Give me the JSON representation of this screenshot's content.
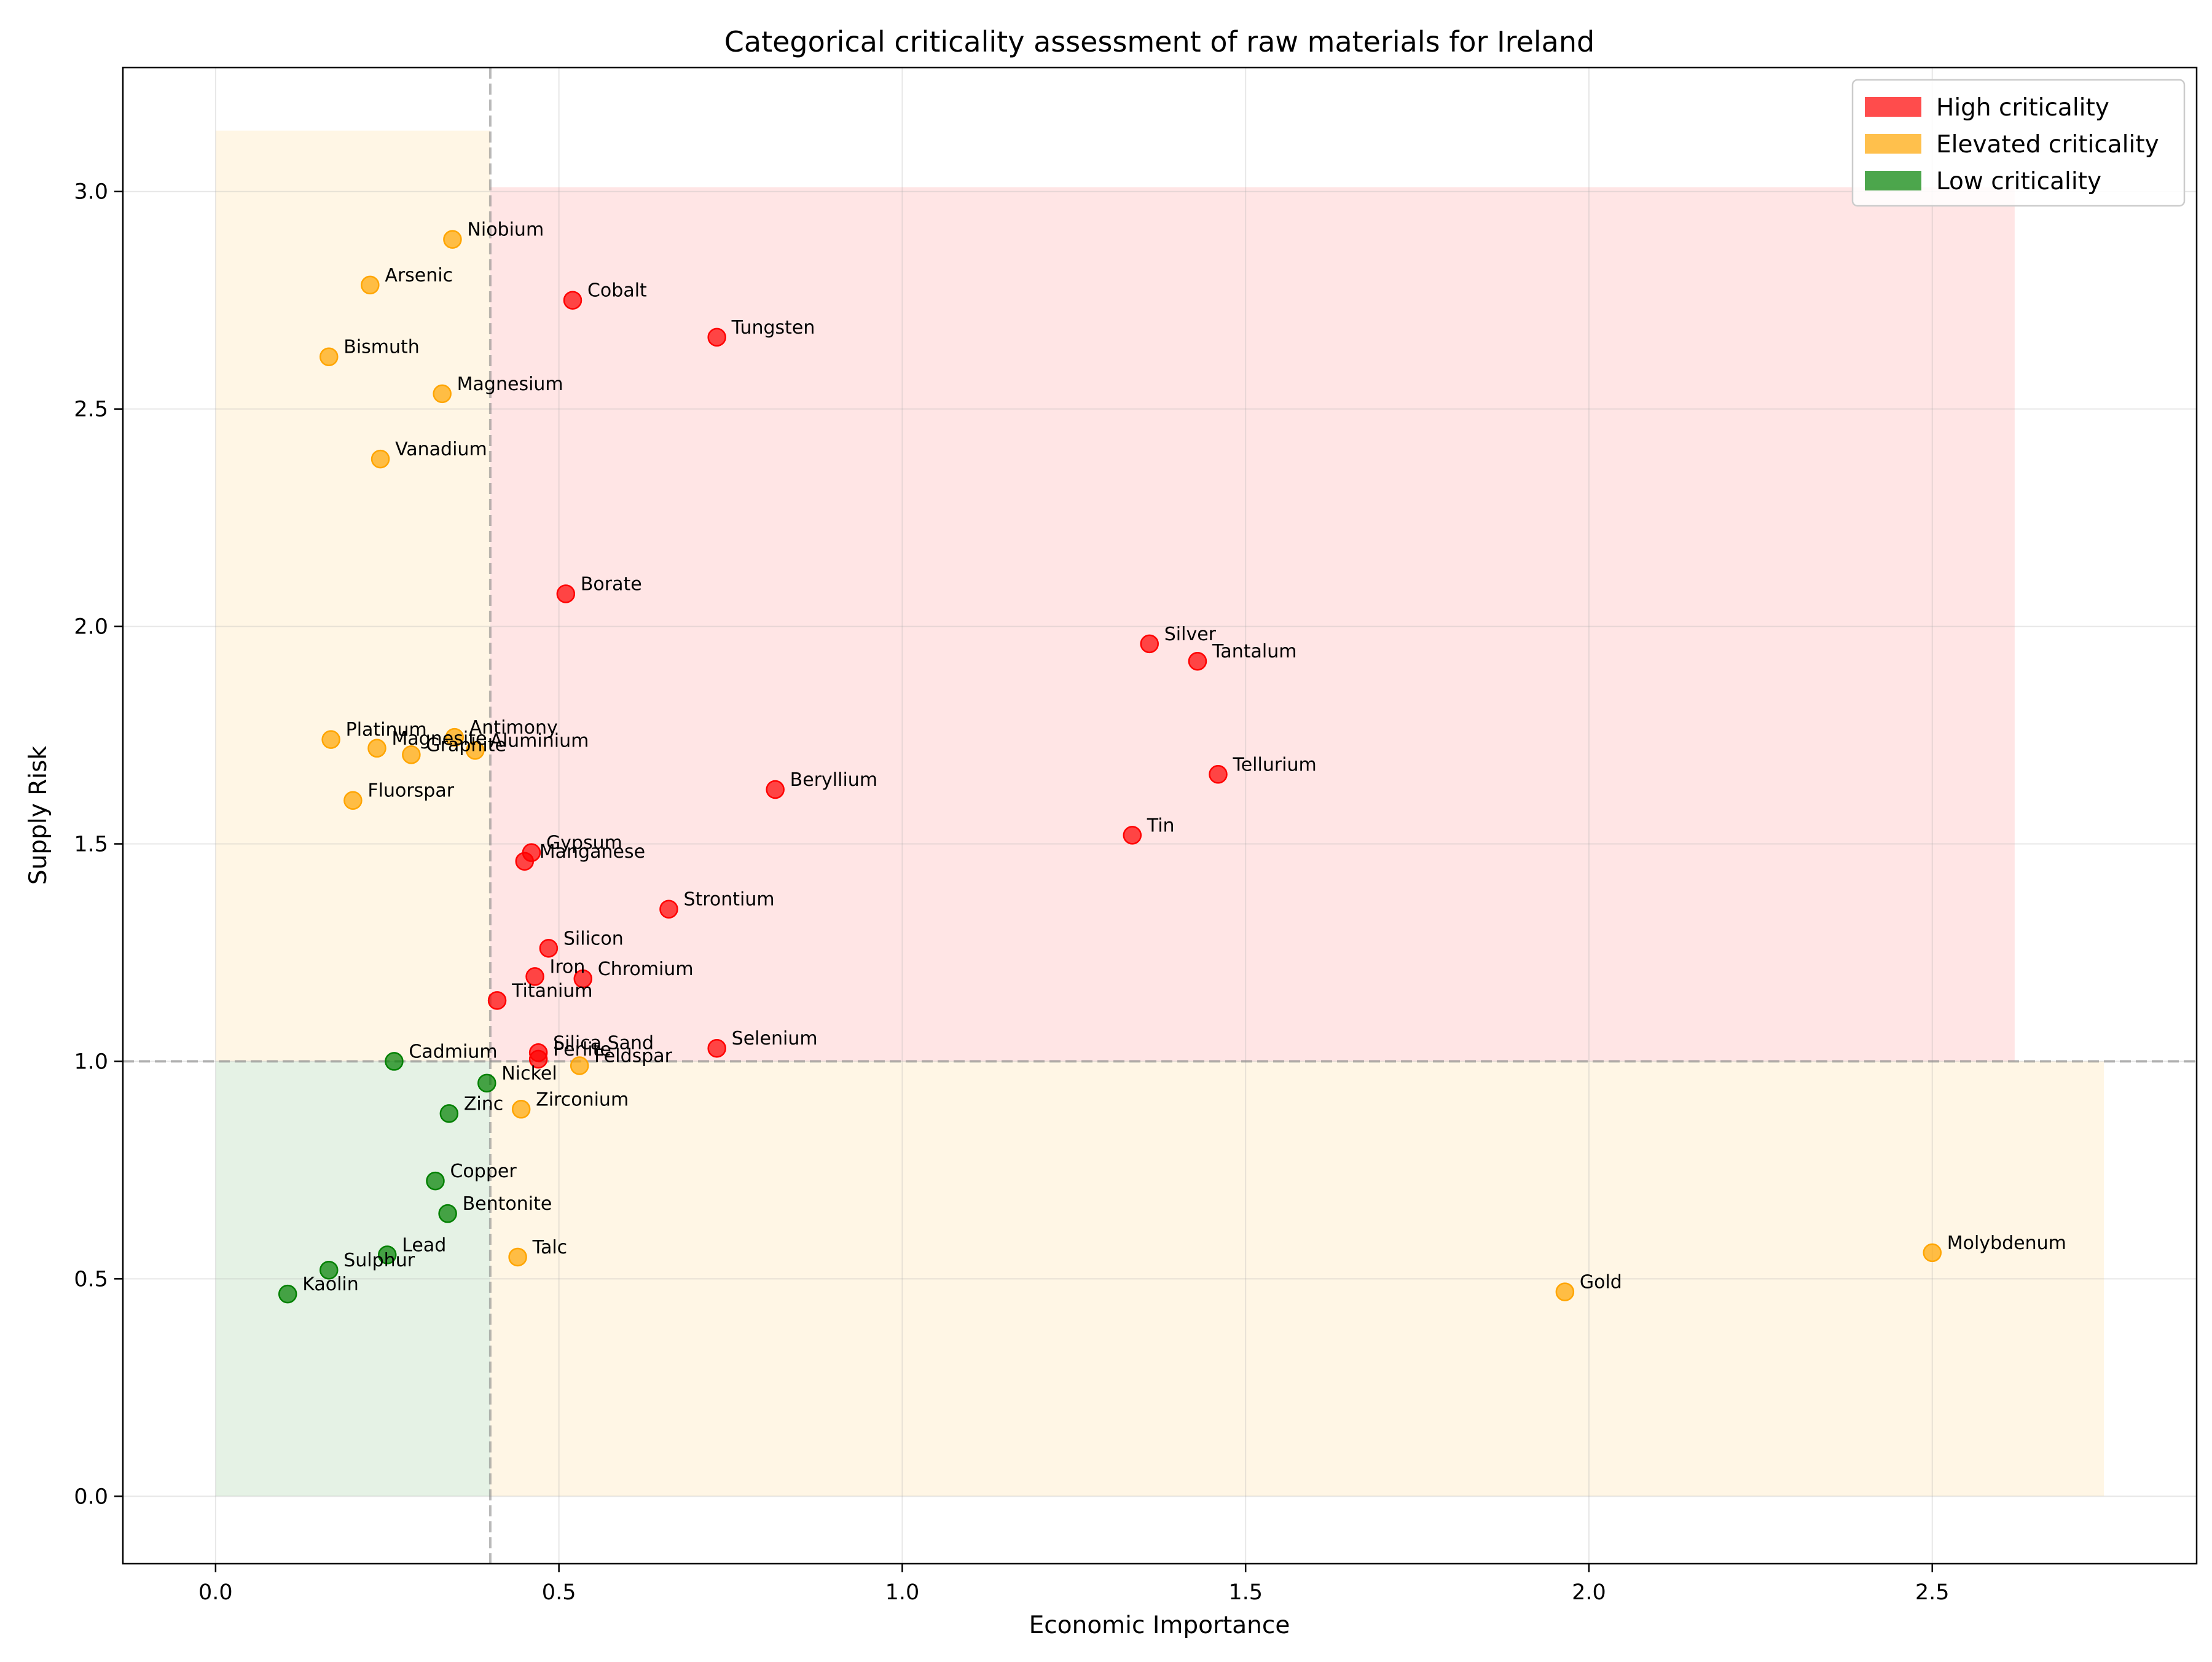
{
  "chart_data": {
    "type": "scatter",
    "title": "Categorical criticality assessment of raw materials for Ireland",
    "xlabel": "Economic Importance",
    "ylabel": "Supply Risk",
    "xlim": [
      -0.135,
      2.885
    ],
    "ylim": [
      -0.155,
      3.285
    ],
    "xticks": [
      0.0,
      0.5,
      1.0,
      1.5,
      2.0,
      2.5
    ],
    "xtick_labels": [
      "0.0",
      "0.5",
      "1.0",
      "1.5",
      "2.0",
      "2.5"
    ],
    "yticks": [
      0.0,
      0.5,
      1.0,
      1.5,
      2.0,
      2.5,
      3.0
    ],
    "ytick_labels": [
      "0.0",
      "0.5",
      "1.0",
      "1.5",
      "2.0",
      "2.5",
      "3.0"
    ],
    "grid": true,
    "thresholds": {
      "x": 0.4,
      "y": 1.0
    },
    "legend_position": "top-right",
    "colors": {
      "High criticality": "#ff0000",
      "Elevated criticality": "#ffa500",
      "Low criticality": "#008000"
    },
    "regions": [
      {
        "category": "Elevated criticality",
        "x": [
          0.0,
          0.4
        ],
        "y": [
          1.0,
          3.14
        ]
      },
      {
        "category": "High criticality",
        "x": [
          0.4,
          2.62
        ],
        "y": [
          1.0,
          3.01
        ]
      },
      {
        "category": "Low criticality",
        "x": [
          0.0,
          0.4
        ],
        "y": [
          0.0,
          1.0
        ]
      },
      {
        "category": "Elevated criticality",
        "x": [
          0.4,
          2.75
        ],
        "y": [
          0.0,
          1.0
        ]
      }
    ],
    "series": [
      {
        "name": "High criticality",
        "points": [
          {
            "label": "Cobalt",
            "x": 0.52,
            "y": 2.75
          },
          {
            "label": "Tungsten",
            "x": 0.73,
            "y": 2.665
          },
          {
            "label": "Borate",
            "x": 0.51,
            "y": 2.075
          },
          {
            "label": "Silver",
            "x": 1.36,
            "y": 1.96
          },
          {
            "label": "Tantalum",
            "x": 1.43,
            "y": 1.92
          },
          {
            "label": "Tellurium",
            "x": 1.46,
            "y": 1.66
          },
          {
            "label": "Beryllium",
            "x": 0.815,
            "y": 1.625
          },
          {
            "label": "Tin",
            "x": 1.335,
            "y": 1.52
          },
          {
            "label": "Gypsum",
            "x": 0.46,
            "y": 1.48
          },
          {
            "label": "Manganese",
            "x": 0.45,
            "y": 1.46
          },
          {
            "label": "Strontium",
            "x": 0.66,
            "y": 1.35
          },
          {
            "label": "Silicon",
            "x": 0.485,
            "y": 1.26
          },
          {
            "label": "Iron",
            "x": 0.465,
            "y": 1.195
          },
          {
            "label": "Chromium",
            "x": 0.535,
            "y": 1.19
          },
          {
            "label": "Titanium",
            "x": 0.41,
            "y": 1.14
          },
          {
            "label": "Selenium",
            "x": 0.73,
            "y": 1.03
          },
          {
            "label": "Silica Sand",
            "x": 0.47,
            "y": 1.02
          },
          {
            "label": "Perlite",
            "x": 0.47,
            "y": 1.005
          }
        ]
      },
      {
        "name": "Elevated criticality",
        "points": [
          {
            "label": "Niobium",
            "x": 0.345,
            "y": 2.89
          },
          {
            "label": "Arsenic",
            "x": 0.225,
            "y": 2.785
          },
          {
            "label": "Bismuth",
            "x": 0.165,
            "y": 2.62
          },
          {
            "label": "Magnesium",
            "x": 0.33,
            "y": 2.535
          },
          {
            "label": "Vanadium",
            "x": 0.24,
            "y": 2.385
          },
          {
            "label": "Platinum",
            "x": 0.168,
            "y": 1.74
          },
          {
            "label": "Antimony",
            "x": 0.348,
            "y": 1.745
          },
          {
            "label": "Magnesite",
            "x": 0.235,
            "y": 1.72
          },
          {
            "label": "Aluminium",
            "x": 0.378,
            "y": 1.715
          },
          {
            "label": "Graphite",
            "x": 0.285,
            "y": 1.705
          },
          {
            "label": "Fluorspar",
            "x": 0.2,
            "y": 1.6
          },
          {
            "label": "Feldspar",
            "x": 0.53,
            "y": 0.99
          },
          {
            "label": "Zirconium",
            "x": 0.445,
            "y": 0.89
          },
          {
            "label": "Talc",
            "x": 0.44,
            "y": 0.55
          },
          {
            "label": "Gold",
            "x": 1.965,
            "y": 0.47
          },
          {
            "label": "Molybdenum",
            "x": 2.5,
            "y": 0.56
          }
        ]
      },
      {
        "name": "Low criticality",
        "points": [
          {
            "label": "Cadmium",
            "x": 0.26,
            "y": 1.0
          },
          {
            "label": "Nickel",
            "x": 0.395,
            "y": 0.95
          },
          {
            "label": "Zinc",
            "x": 0.34,
            "y": 0.88
          },
          {
            "label": "Copper",
            "x": 0.32,
            "y": 0.725
          },
          {
            "label": "Bentonite",
            "x": 0.338,
            "y": 0.65
          },
          {
            "label": "Lead",
            "x": 0.25,
            "y": 0.555
          },
          {
            "label": "Sulphur",
            "x": 0.165,
            "y": 0.52
          },
          {
            "label": "Kaolin",
            "x": 0.105,
            "y": 0.465
          }
        ]
      }
    ]
  }
}
